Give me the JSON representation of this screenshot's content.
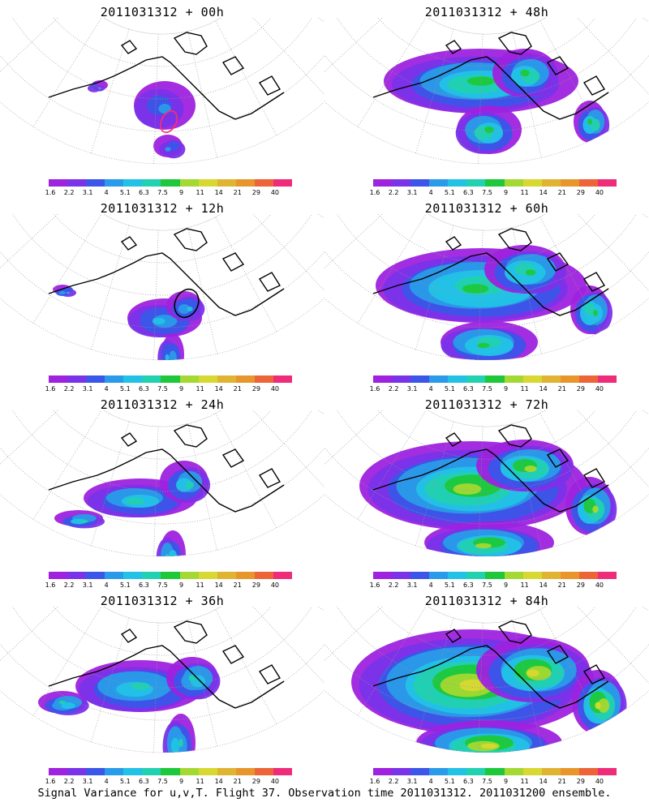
{
  "figure": {
    "caption": "Signal Variance for u,v,T. Flight 37. Observation time 2011031312. 2011031200 ensemble."
  },
  "colorbar": {
    "labels": [
      "1.6",
      "2.2",
      "3.1",
      "4",
      "5.1",
      "6.3",
      "7.5",
      "9",
      "11",
      "14",
      "21",
      "29",
      "40"
    ],
    "colors": [
      "#9e22de",
      "#7a33e8",
      "#3b56e8",
      "#2a9be8",
      "#22c2e6",
      "#22d1b0",
      "#1ec83a",
      "#a4d832",
      "#d8d832",
      "#e0b432",
      "#e8962c",
      "#ec6438",
      "#ee2c7a"
    ]
  },
  "panels": [
    {
      "title": "2011031312 + 00h",
      "intensity": 0.35,
      "marker": {
        "color": "#ff3060"
      }
    },
    {
      "title": "2011031312 + 12h",
      "intensity": 0.45,
      "marker": {
        "color": "#000000"
      }
    },
    {
      "title": "2011031312 + 24h",
      "intensity": 0.55
    },
    {
      "title": "2011031312 + 36h",
      "intensity": 0.6
    },
    {
      "title": "2011031312 + 48h",
      "intensity": 0.65
    },
    {
      "title": "2011031312 + 60h",
      "intensity": 0.7
    },
    {
      "title": "2011031312 + 72h",
      "intensity": 0.8
    },
    {
      "title": "2011031312 + 84h",
      "intensity": 0.9
    }
  ]
}
